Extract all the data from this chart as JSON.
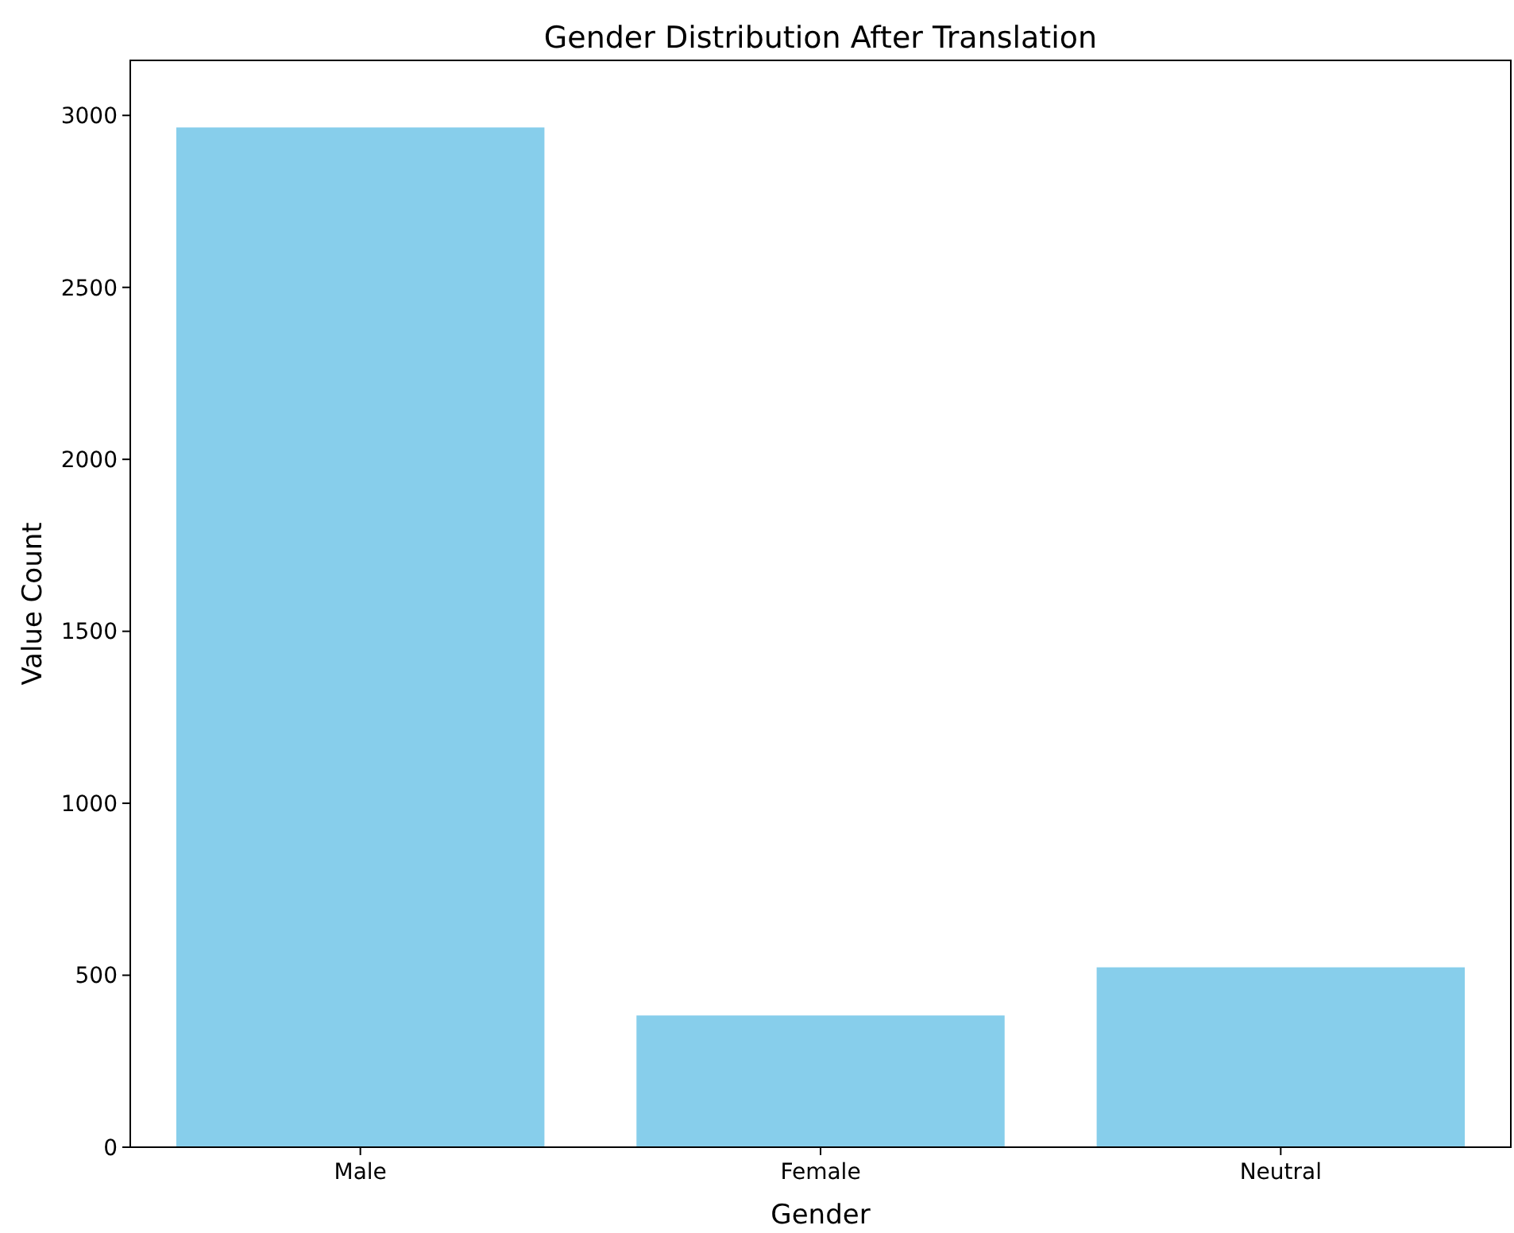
{
  "chart_data": {
    "type": "bar",
    "title": "Gender Distribution After Translation",
    "xlabel": "Gender",
    "ylabel": "Value Count",
    "categories": [
      "Male",
      "Female",
      "Neutral"
    ],
    "values": [
      2965,
      383,
      523
    ],
    "color": "#87ceeb",
    "ylim": [
      0,
      3160
    ],
    "yticks": [
      0,
      500,
      1000,
      1500,
      2000,
      2500,
      3000
    ],
    "grid": false
  }
}
